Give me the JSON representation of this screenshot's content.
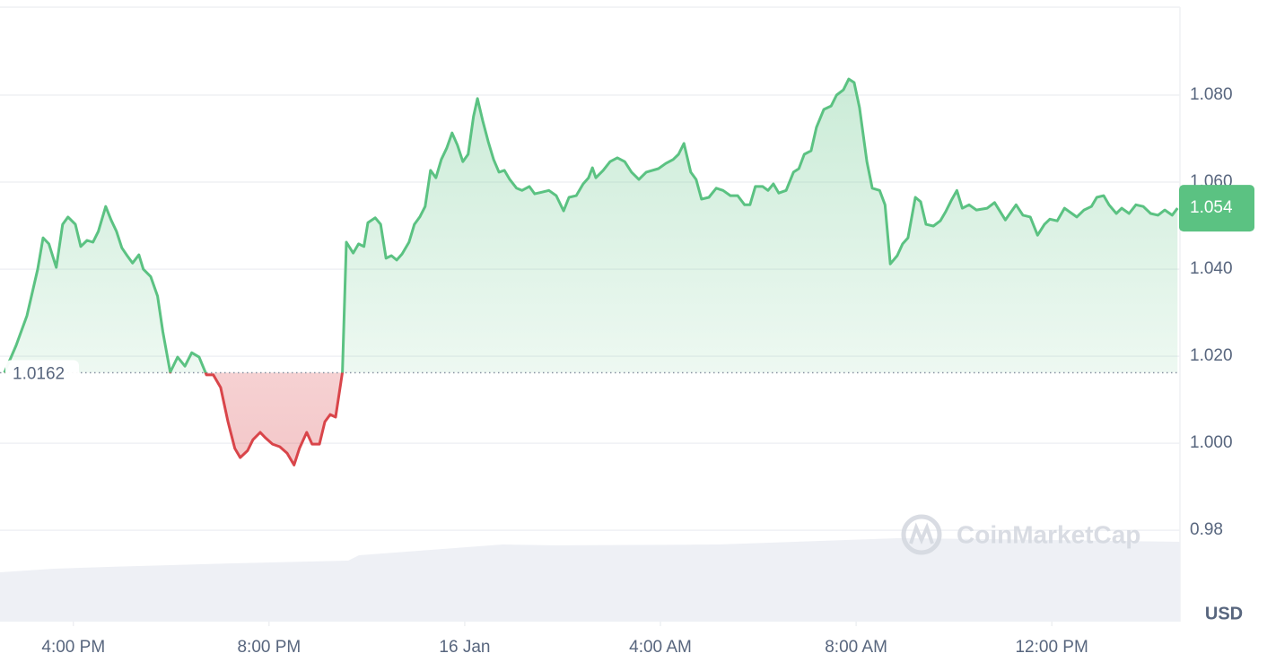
{
  "chart_data": {
    "type": "line",
    "color": "#5bc282",
    "negative_color": "#d9454a",
    "baseline": 1.0162,
    "current_price": 1.054,
    "y_unit": "USD",
    "watermark": "CoinMarketCap",
    "grid": true,
    "xlim": [
      14.5,
      38.62
    ],
    "ylim": [
      0.959,
      1.1
    ],
    "xticks": [
      {
        "value": 16,
        "label": "4:00 PM"
      },
      {
        "value": 20,
        "label": "8:00 PM"
      },
      {
        "value": 24,
        "label": "16 Jan"
      },
      {
        "value": 28,
        "label": "4:00 AM"
      },
      {
        "value": 32,
        "label": "8:00 AM"
      },
      {
        "value": 36,
        "label": "12:00 PM"
      }
    ],
    "yticks": [
      {
        "value": 1.08,
        "label": "1.080"
      },
      {
        "value": 1.06,
        "label": "1.060"
      },
      {
        "value": 1.04,
        "label": "1.040"
      },
      {
        "value": 1.02,
        "label": "1.020"
      },
      {
        "value": 1,
        "label": "1.000"
      },
      0.98
    ],
    "x": [
      14.59,
      14.83,
      15.05,
      15.27,
      15.38,
      15.5,
      15.65,
      15.78,
      15.89,
      16.04,
      16.15,
      16.28,
      16.4,
      16.51,
      16.66,
      16.77,
      16.88,
      16.99,
      17.1,
      17.21,
      17.34,
      17.43,
      17.58,
      17.72,
      17.83,
      17.98,
      18.13,
      18.28,
      18.42,
      18.57,
      18.72,
      18.86,
      19.01,
      19.16,
      19.3,
      19.41,
      19.56,
      19.67,
      19.82,
      19.93,
      20.07,
      20.22,
      20.37,
      20.51,
      20.62,
      20.77,
      20.88,
      21.03,
      21.14,
      21.25,
      21.36,
      21.5,
      21.58,
      21.72,
      21.83,
      21.94,
      22.02,
      22.17,
      22.28,
      22.39,
      22.5,
      22.61,
      22.72,
      22.86,
      22.97,
      23.08,
      23.19,
      23.3,
      23.41,
      23.52,
      23.63,
      23.74,
      23.85,
      23.96,
      24.07,
      24.18,
      24.26,
      24.37,
      24.48,
      24.59,
      24.7,
      24.81,
      24.92,
      25.06,
      25.17,
      25.32,
      25.43,
      25.58,
      25.72,
      25.87,
      26.02,
      26.13,
      26.28,
      26.42,
      26.53,
      26.61,
      26.68,
      26.83,
      26.97,
      27.12,
      27.27,
      27.41,
      27.56,
      27.71,
      27.96,
      28.11,
      28.26,
      28.37,
      28.48,
      28.62,
      28.73,
      28.84,
      28.99,
      29.14,
      29.28,
      29.43,
      29.58,
      29.72,
      29.83,
      29.94,
      30.09,
      30.2,
      30.31,
      30.42,
      30.57,
      30.72,
      30.83,
      30.94,
      31.08,
      31.19,
      31.34,
      31.49,
      31.6,
      31.74,
      31.85,
      31.96,
      32.07,
      32.22,
      32.33,
      32.48,
      32.59,
      32.7,
      32.84,
      32.95,
      33.06,
      33.21,
      33.32,
      33.43,
      33.58,
      33.72,
      33.83,
      33.94,
      34.06,
      34.17,
      34.31,
      34.46,
      34.68,
      34.83,
      35.05,
      35.27,
      35.41,
      35.56,
      35.71,
      35.85,
      35.96,
      36.11,
      36.26,
      36.51,
      36.66,
      36.81,
      36.92,
      37.06,
      37.17,
      37.32,
      37.43,
      37.58,
      37.72,
      37.87,
      38.02,
      38.17,
      38.31,
      38.46,
      38.57
    ],
    "values": [
      1.0162,
      1.0225,
      1.0293,
      1.04,
      1.0472,
      1.0458,
      1.0404,
      1.0503,
      1.052,
      1.0503,
      1.0452,
      1.0466,
      1.0462,
      1.0487,
      1.0544,
      1.0513,
      1.0487,
      1.0449,
      1.0431,
      1.0414,
      1.0433,
      1.04,
      1.0383,
      1.0338,
      1.0256,
      1.0163,
      1.0198,
      1.0177,
      1.0208,
      1.0198,
      1.0157,
      1.0157,
      1.0128,
      1.0049,
      0.9988,
      0.9967,
      0.9983,
      1.0008,
      1.0025,
      1.0012,
      0.9998,
      0.9992,
      0.9977,
      0.995,
      0.9988,
      1.0025,
      0.9998,
      0.9998,
      1.0049,
      1.0066,
      1.006,
      1.0163,
      1.0462,
      1.0437,
      1.0458,
      1.0452,
      1.0507,
      1.0518,
      1.0503,
      1.0425,
      1.0431,
      1.0421,
      1.0435,
      1.0462,
      1.0503,
      1.052,
      1.0544,
      1.0627,
      1.061,
      1.0652,
      1.0678,
      1.0713,
      1.0685,
      1.0647,
      1.0664,
      1.0751,
      1.0792,
      1.074,
      1.0693,
      1.0652,
      1.0623,
      1.0627,
      1.0606,
      1.0586,
      1.0581,
      1.059,
      1.0573,
      1.0577,
      1.0581,
      1.0569,
      1.0534,
      1.0565,
      1.0569,
      1.0596,
      1.061,
      1.0633,
      1.061,
      1.0627,
      1.0647,
      1.0656,
      1.0647,
      1.0623,
      1.0606,
      1.0623,
      1.0631,
      1.0643,
      1.0652,
      1.0664,
      1.0689,
      1.0623,
      1.0606,
      1.0561,
      1.0565,
      1.0586,
      1.0581,
      1.0569,
      1.0569,
      1.0548,
      1.0548,
      1.059,
      1.059,
      1.0581,
      1.0596,
      1.0575,
      1.0581,
      1.0623,
      1.0631,
      1.0664,
      1.0672,
      1.0726,
      1.0767,
      1.0775,
      1.08,
      1.0812,
      1.0837,
      1.0829,
      1.0771,
      1.0647,
      1.0586,
      1.0581,
      1.0548,
      1.0412,
      1.0431,
      1.0458,
      1.0472,
      1.0565,
      1.0555,
      1.0503,
      1.0499,
      1.0511,
      1.0532,
      1.0557,
      1.0581,
      1.054,
      1.0548,
      1.0536,
      1.054,
      1.0553,
      1.0513,
      1.0548,
      1.0524,
      1.052,
      1.0478,
      1.0503,
      1.0515,
      1.0511,
      1.054,
      1.052,
      1.0536,
      1.0544,
      1.0565,
      1.0569,
      1.0548,
      1.0528,
      1.054,
      1.0528,
      1.0548,
      1.0544,
      1.0528,
      1.0524,
      1.0536,
      1.0524,
      1.054
    ]
  }
}
